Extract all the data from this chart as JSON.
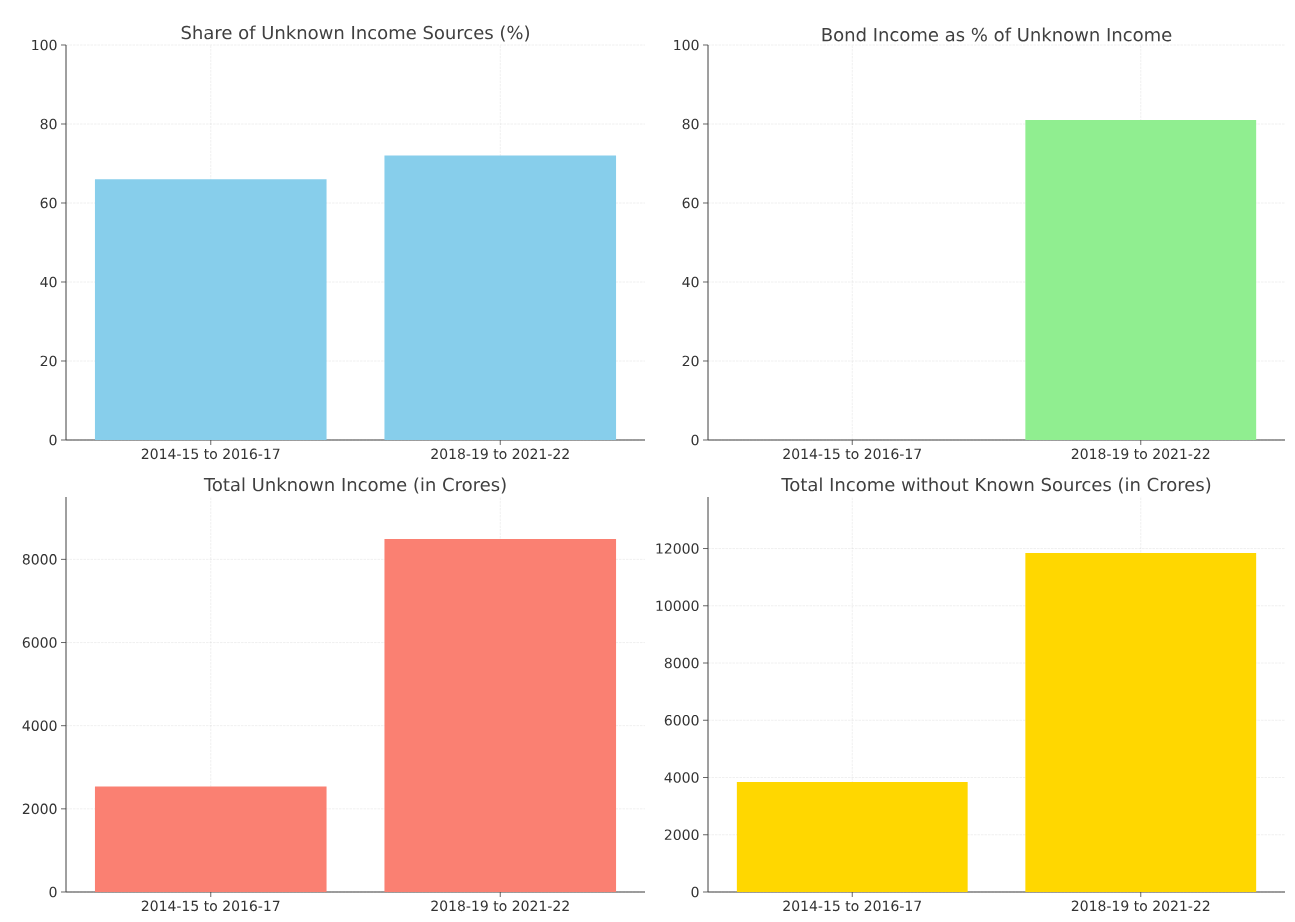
{
  "chart_data": [
    {
      "type": "bar",
      "title": "Share of Unknown Income Sources (%)",
      "categories": [
        "2014-15 to 2016-17",
        "2018-19 to 2021-22"
      ],
      "values": [
        66,
        72
      ],
      "color": "#87ceeb",
      "ylim": [
        0,
        100
      ],
      "yticks": [
        0,
        20,
        40,
        60,
        80,
        100
      ],
      "grid": true
    },
    {
      "type": "bar",
      "title": "Bond Income as % of Unknown Income",
      "categories": [
        "2014-15 to 2016-17",
        "2018-19 to 2021-22"
      ],
      "values": [
        0,
        81
      ],
      "color": "#90ee90",
      "ylim": [
        0,
        100
      ],
      "yticks": [
        0,
        20,
        40,
        60,
        80,
        100
      ],
      "grid": true
    },
    {
      "type": "bar",
      "title": "Total Unknown Income (in Crores)",
      "categories": [
        "2014-15 to 2016-17",
        "2018-19 to 2021-22"
      ],
      "values": [
        2540,
        8490
      ],
      "color": "#fa8072",
      "ylim": [
        0,
        9500
      ],
      "yticks": [
        0,
        2000,
        4000,
        6000,
        8000
      ],
      "grid": true
    },
    {
      "type": "bar",
      "title": "Total Income without Known Sources (in Crores)",
      "categories": [
        "2014-15 to 2016-17",
        "2018-19 to 2021-22"
      ],
      "values": [
        3840,
        11840
      ],
      "color": "#ffd700",
      "ylim": [
        0,
        13800
      ],
      "yticks": [
        0,
        2000,
        4000,
        6000,
        8000,
        10000,
        12000
      ],
      "grid": true
    }
  ]
}
